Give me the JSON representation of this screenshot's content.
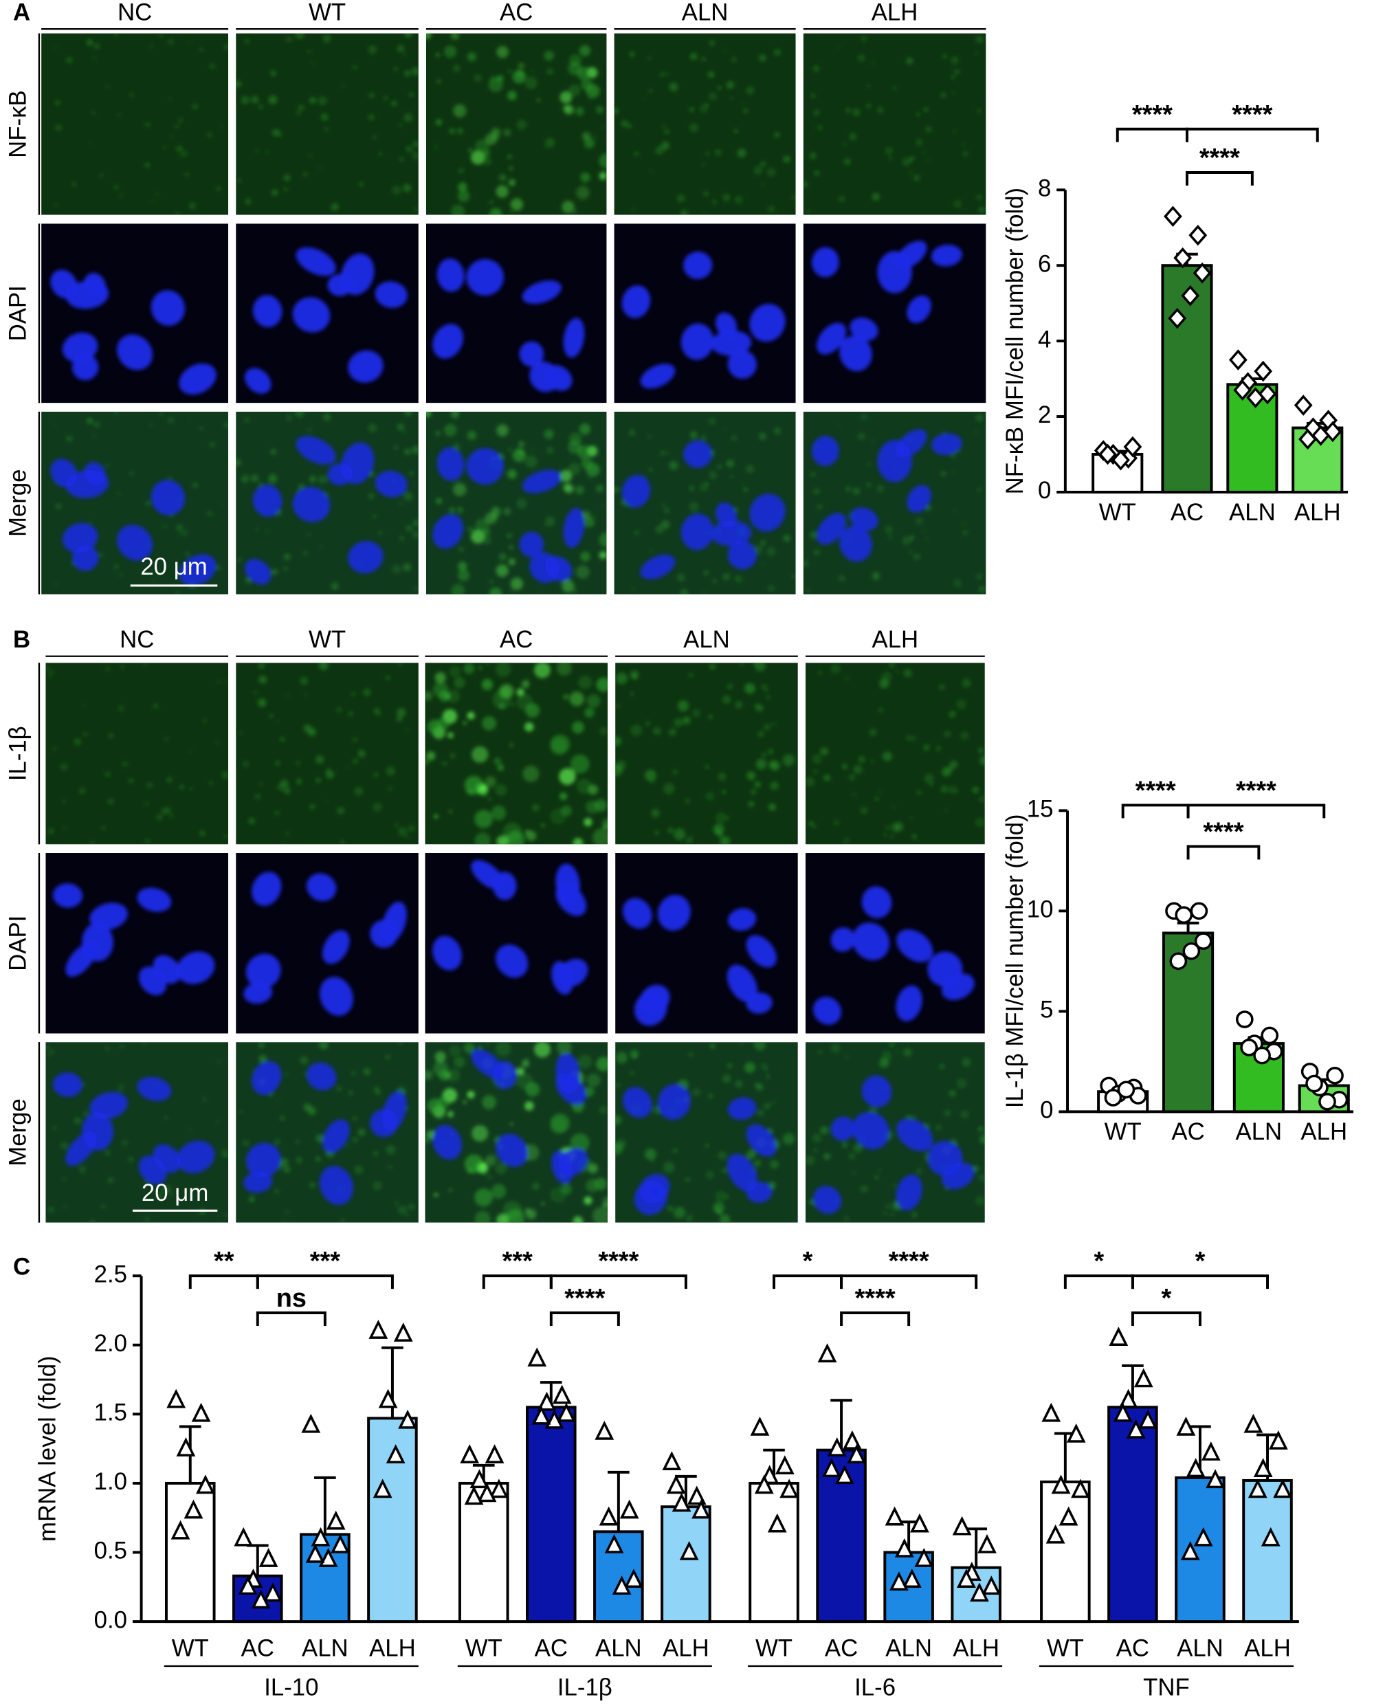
{
  "panel_labels": [
    "A",
    "B",
    "C"
  ],
  "panels": [
    {
      "columns": [
        "NC",
        "WT",
        "AC",
        "ALN",
        "ALH"
      ],
      "rows": [
        "NF-κB",
        "DAPI",
        "Merge"
      ],
      "scale_bar": "20 μm"
    },
    {
      "columns": [
        "NC",
        "WT",
        "AC",
        "ALN",
        "ALH"
      ],
      "rows": [
        "IL-1β",
        "DAPI",
        "Merge"
      ],
      "scale_bar": "20 μm"
    }
  ],
  "chart_data": [
    {
      "type": "bar",
      "ylabel": "NF-κB MFI/cell number (fold)",
      "categories": [
        "WT",
        "AC",
        "ALN",
        "ALH"
      ],
      "values": [
        1.0,
        6.0,
        2.85,
        1.7
      ],
      "errors": [
        0.08,
        0.3,
        0.15,
        0.12
      ],
      "points": [
        [
          1.1,
          0.9,
          1.0,
          1.2,
          0.85,
          1.0
        ],
        [
          7.3,
          6.8,
          6.2,
          5.8,
          5.2,
          4.6
        ],
        [
          3.5,
          3.2,
          2.9,
          2.6,
          2.5,
          2.7
        ],
        [
          2.3,
          1.9,
          1.7,
          1.6,
          1.5,
          1.4
        ]
      ],
      "colors": [
        "#ffffff",
        "#2a7a2a",
        "#33bb22",
        "#66dd55"
      ],
      "marker": "diamond",
      "ylim": [
        0,
        8
      ],
      "yticks": [
        0,
        2,
        4,
        6,
        8
      ],
      "annotations": [
        {
          "label": "****",
          "groups": [
            "WT",
            "AC"
          ]
        },
        {
          "label": "****",
          "groups": [
            "AC",
            "ALH"
          ]
        },
        {
          "label": "****",
          "groups": [
            "AC",
            "ALN"
          ]
        }
      ]
    },
    {
      "type": "bar",
      "ylabel": "IL-1β MFI/cell number (fold)",
      "categories": [
        "WT",
        "AC",
        "ALN",
        "ALH"
      ],
      "values": [
        1.0,
        8.9,
        3.4,
        1.3
      ],
      "errors": [
        0.15,
        0.5,
        0.3,
        0.3
      ],
      "points": [
        [
          1.3,
          1.2,
          0.9,
          0.8,
          1.1,
          0.7
        ],
        [
          10.0,
          10.0,
          9.8,
          8.5,
          8.0,
          7.5
        ],
        [
          4.6,
          3.8,
          3.4,
          3.0,
          2.8,
          3.2
        ],
        [
          2.0,
          1.8,
          1.2,
          0.6,
          0.5,
          1.4
        ]
      ],
      "colors": [
        "#ffffff",
        "#2a7a2a",
        "#33bb22",
        "#66dd55"
      ],
      "marker": "circle",
      "ylim": [
        0,
        15
      ],
      "yticks": [
        0,
        5,
        10,
        15
      ],
      "annotations": [
        {
          "label": "****",
          "groups": [
            "WT",
            "AC"
          ]
        },
        {
          "label": "****",
          "groups": [
            "AC",
            "ALH"
          ]
        },
        {
          "label": "****",
          "groups": [
            "AC",
            "ALN"
          ]
        }
      ]
    },
    {
      "type": "grouped_bar",
      "ylabel": "mRNA level (fold)",
      "groups": [
        "IL-10",
        "IL-1β",
        "IL-6",
        "TNF"
      ],
      "marker": "triangle",
      "ylim": [
        0,
        2.5
      ],
      "yticks": [
        {
          "value": 0,
          "label": "0.0"
        },
        0.5,
        {
          "value": 1,
          "label": "1.0"
        },
        1.5,
        {
          "value": 2,
          "label": "2.0"
        },
        2.5
      ],
      "series": [
        {
          "name": "WT",
          "color": "#ffffff",
          "values": [
            1.0,
            1.0,
            1.0,
            1.01
          ],
          "errors": [
            0.41,
            0.13,
            0.24,
            0.35
          ],
          "points": [
            [
              1.6,
              1.5,
              1.25,
              0.98,
              0.8,
              0.65
            ],
            [
              1.2,
              1.2,
              1.02,
              0.95,
              0.92,
              0.9
            ],
            [
              1.4,
              1.12,
              1.05,
              0.95,
              0.7,
              0.98
            ],
            [
              1.5,
              1.35,
              0.98,
              0.95,
              0.75,
              0.62
            ]
          ]
        },
        {
          "name": "AC",
          "color": "#0a14a8",
          "values": [
            0.33,
            1.55,
            1.24,
            1.55
          ],
          "errors": [
            0.22,
            0.18,
            0.36,
            0.3
          ],
          "points": [
            [
              0.6,
              0.45,
              0.3,
              0.2,
              0.15,
              0.25
            ],
            [
              1.9,
              1.63,
              1.58,
              1.5,
              1.45,
              1.48
            ],
            [
              1.93,
              1.3,
              1.25,
              1.2,
              1.05,
              1.1
            ],
            [
              2.05,
              1.75,
              1.6,
              1.45,
              1.38,
              1.5
            ]
          ]
        },
        {
          "name": "ALN",
          "color": "#1e88e5",
          "values": [
            0.63,
            0.65,
            0.5,
            1.04
          ],
          "errors": [
            0.41,
            0.43,
            0.22,
            0.37
          ],
          "points": [
            [
              1.42,
              0.72,
              0.6,
              0.55,
              0.45,
              0.48
            ],
            [
              1.37,
              0.8,
              0.55,
              0.3,
              0.25,
              0.75
            ],
            [
              0.75,
              0.7,
              0.52,
              0.45,
              0.3,
              0.28
            ],
            [
              1.4,
              1.22,
              1.1,
              1.02,
              0.6,
              0.5
            ]
          ]
        },
        {
          "name": "ALH",
          "color": "#90d4f8",
          "values": [
            1.47,
            0.83,
            0.39,
            1.02
          ],
          "errors": [
            0.51,
            0.22,
            0.28,
            0.33
          ],
          "points": [
            [
              2.1,
              2.08,
              1.6,
              1.45,
              1.2,
              0.95
            ],
            [
              1.15,
              0.9,
              0.85,
              0.8,
              0.5,
              0.98
            ],
            [
              0.68,
              0.55,
              0.35,
              0.25,
              0.2,
              0.3
            ],
            [
              1.42,
              1.3,
              1.1,
              0.95,
              0.6,
              0.95
            ]
          ]
        }
      ],
      "annotations": [
        [
          {
            "label": "**",
            "groups": [
              "WT",
              "AC"
            ]
          },
          {
            "label": "***",
            "groups": [
              "AC",
              "ALH"
            ]
          },
          {
            "label": "ns",
            "groups": [
              "AC",
              "ALN"
            ]
          }
        ],
        [
          {
            "label": "***",
            "groups": [
              "WT",
              "AC"
            ]
          },
          {
            "label": "****",
            "groups": [
              "AC",
              "ALH"
            ]
          },
          {
            "label": "****",
            "groups": [
              "AC",
              "ALN"
            ]
          }
        ],
        [
          {
            "label": "*",
            "groups": [
              "WT",
              "AC"
            ]
          },
          {
            "label": "****",
            "groups": [
              "AC",
              "ALH"
            ]
          },
          {
            "label": "****",
            "groups": [
              "AC",
              "ALN"
            ]
          }
        ],
        [
          {
            "label": "*",
            "groups": [
              "WT",
              "AC"
            ]
          },
          {
            "label": "*",
            "groups": [
              "AC",
              "ALH"
            ]
          },
          {
            "label": "*",
            "groups": [
              "AC",
              "ALN"
            ]
          }
        ]
      ]
    }
  ]
}
